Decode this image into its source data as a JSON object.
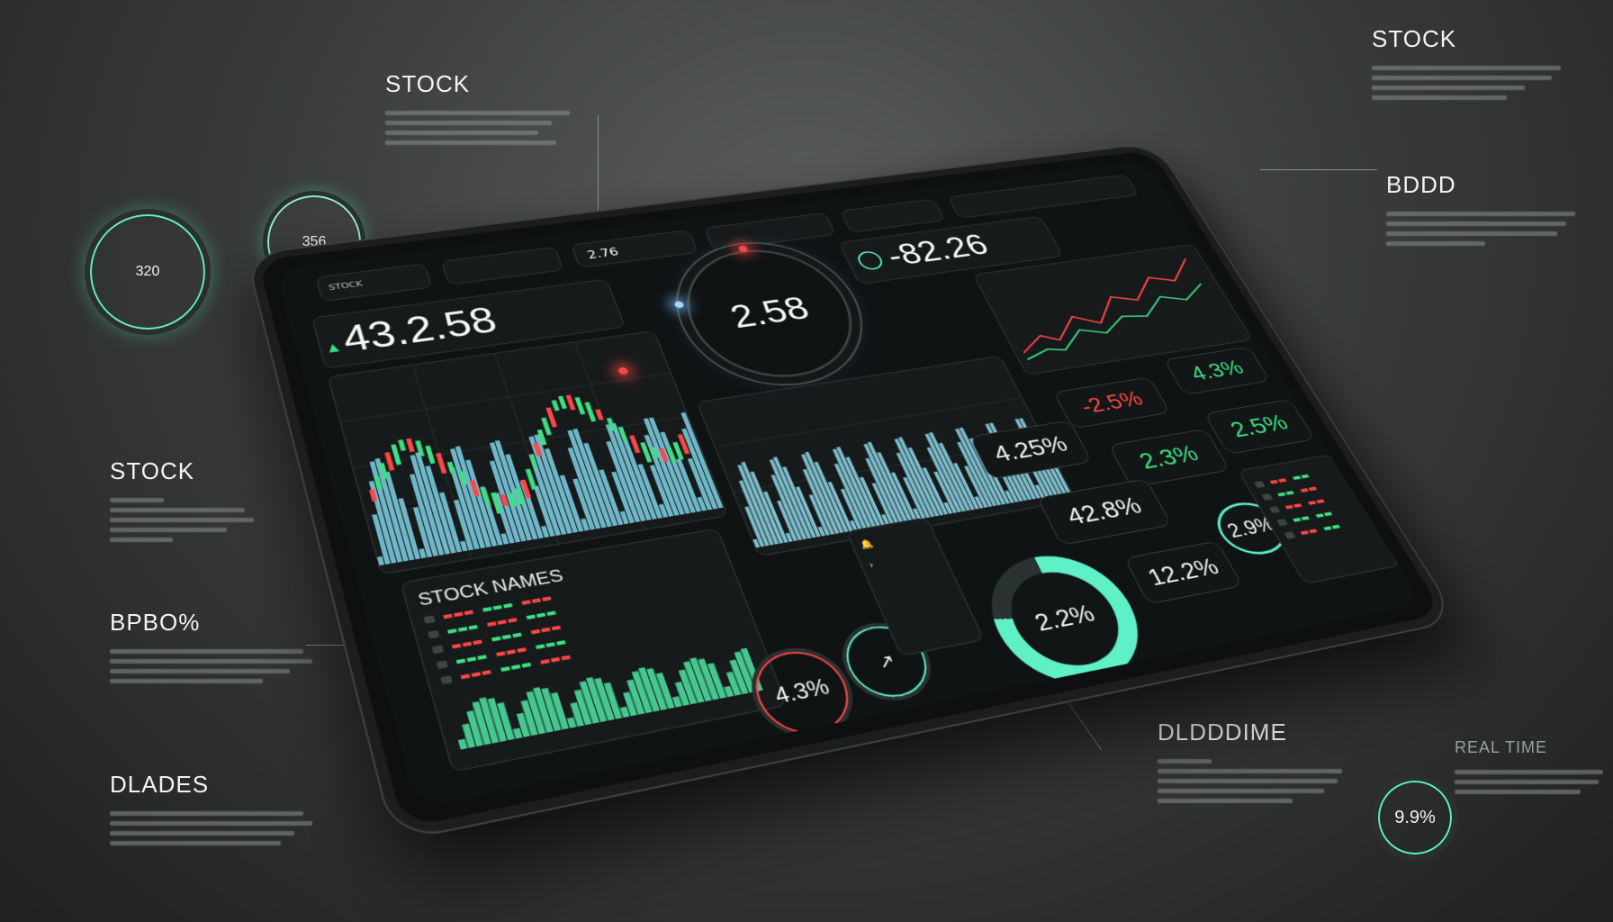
{
  "side_labels": {
    "top_left": "STOCK",
    "top_right": "STOCK",
    "right_mid": "BDDD",
    "left_mid": "STOCK",
    "left_lower": "BPBO%",
    "left_bottom": "DLADES",
    "bottom_center": "DLDDDIME",
    "bottom_right": "REAL TIME"
  },
  "floating_rings": {
    "left": "320",
    "left2": "356",
    "bottom_right": "9.9%"
  },
  "tablet": {
    "header_label": "STOCK",
    "main_value": "43.2.58",
    "center_ring_value": "2.58",
    "top_right_value": "-82.26",
    "ticker_small": "2.76",
    "stock_names_label": "STOCK NAMES",
    "donut_value": "2.2%",
    "small_ring_value": "4.3%",
    "pct_chips": [
      "4.3%",
      "-2.5%",
      "4.25%",
      "2.3%",
      "2.5%",
      "42.8%",
      "2.9%",
      "12.2%"
    ]
  },
  "colors": {
    "accent_green": "#3ee083",
    "accent_red": "#ff4747",
    "accent_teal": "#5ff0c8",
    "accent_blue": "#6aa8ff"
  },
  "icons": [
    "trend-icon",
    "gear-icon",
    "bell-icon",
    "chevron-icon"
  ]
}
